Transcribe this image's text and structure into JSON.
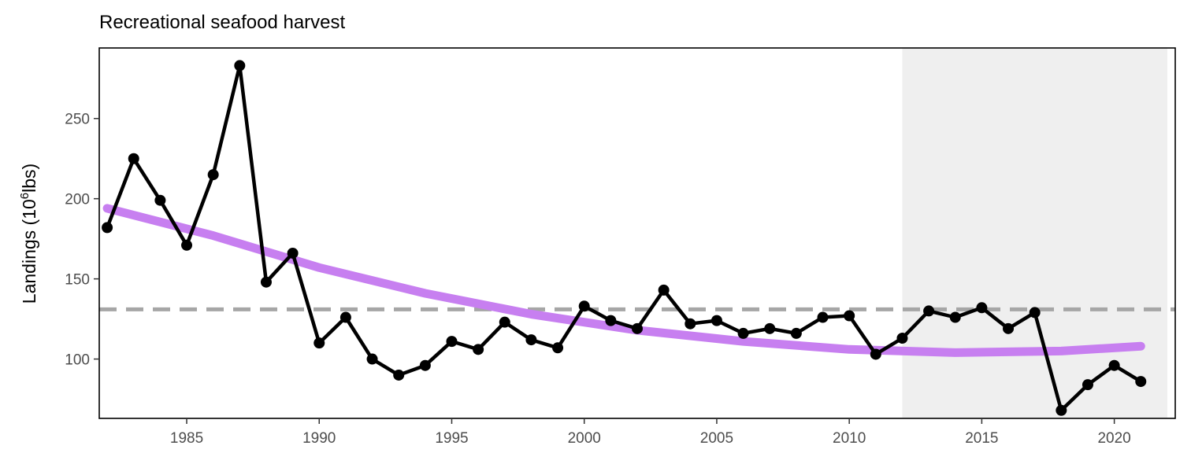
{
  "chart_data": {
    "type": "line",
    "title": "Recreational seafood harvest",
    "ylabel": {
      "prefix": "Landings (10",
      "superscript": "6",
      "suffix": "lbs)"
    },
    "xlabel": "",
    "xlim": [
      1981.7,
      2022.3
    ],
    "ylim": [
      63,
      294
    ],
    "x_ticks": [
      1985,
      1990,
      1995,
      2000,
      2005,
      2010,
      2015,
      2020
    ],
    "y_ticks": [
      100,
      150,
      200,
      250
    ],
    "grid": false,
    "shaded_region": {
      "x_start": 2012,
      "x_end": 2022,
      "color": "#efefef"
    },
    "reference_line": {
      "y": 131,
      "style": "dashed",
      "color": "#a6a6a6"
    },
    "series": [
      {
        "color": "#000000",
        "x": [
          1982,
          1983,
          1984,
          1985,
          1986,
          1987,
          1988,
          1989,
          1990,
          1991,
          1992,
          1993,
          1994,
          1995,
          1996,
          1997,
          1998,
          1999,
          2000,
          2001,
          2002,
          2003,
          2004,
          2005,
          2006,
          2007,
          2008,
          2009,
          2010,
          2011,
          2012,
          2013,
          2014,
          2015,
          2016,
          2017,
          2018,
          2019,
          2020,
          2021
        ],
        "y": [
          182,
          225,
          199,
          171,
          215,
          283,
          148,
          166,
          110,
          126,
          100,
          90,
          96,
          111,
          106,
          123,
          112,
          107,
          133,
          124,
          119,
          143,
          122,
          124,
          116,
          119,
          116,
          126,
          127,
          103,
          113,
          130,
          126,
          132,
          119,
          129,
          68,
          84,
          96,
          86
        ]
      }
    ],
    "trend": {
      "color": "#c77ff0",
      "x": [
        1982,
        1986,
        1990,
        1994,
        1998,
        2002,
        2006,
        2010,
        2014,
        2018,
        2021
      ],
      "y": [
        194,
        177,
        157,
        141,
        128,
        118,
        111,
        106,
        104,
        105,
        108
      ]
    }
  }
}
